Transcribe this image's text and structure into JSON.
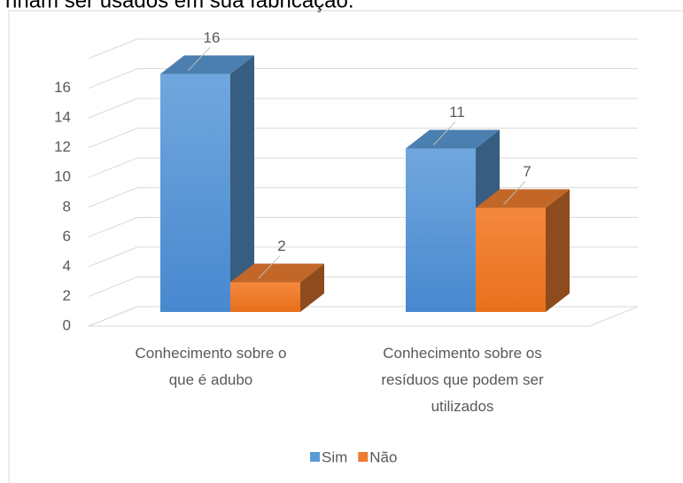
{
  "caption": "nham ser usados em sua fabricação.",
  "chart_data": {
    "type": "bar3d",
    "categories": [
      "Conhecimento sobre o que é adubo",
      "Conhecimento sobre os resíduos que podem ser utilizados"
    ],
    "series": [
      {
        "name": "Sim",
        "color": "#5b9bd5",
        "values": [
          16,
          11
        ]
      },
      {
        "name": "Não",
        "color": "#ed7d31",
        "values": [
          2,
          7
        ]
      }
    ],
    "ylim": [
      0,
      18
    ],
    "yticks": [
      0,
      2,
      4,
      6,
      8,
      10,
      12,
      14,
      16
    ],
    "grid": true,
    "legend": "bottom"
  }
}
